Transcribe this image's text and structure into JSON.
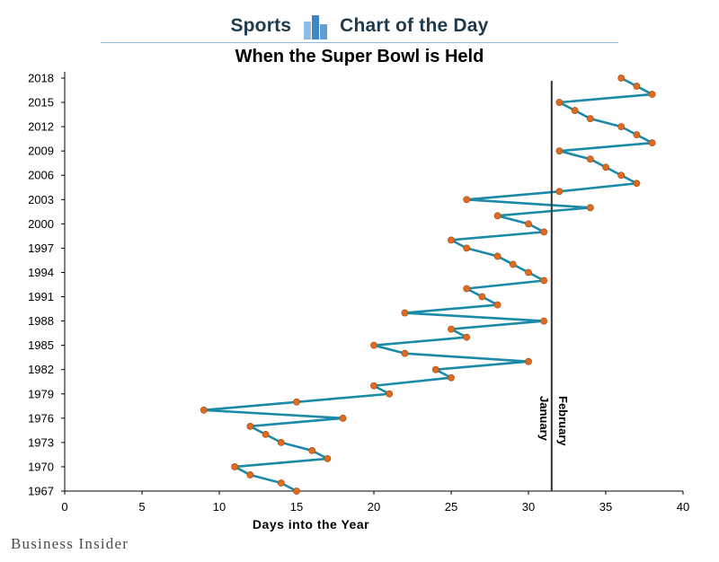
{
  "header": {
    "left_word": "Sports",
    "right_word": "Chart of the Day",
    "logo_icon": "bar-chart-icon",
    "accent_color": "#4a90c8"
  },
  "brand": "Business Insider",
  "chart_data": {
    "type": "line",
    "title": "When the Super Bowl is Held",
    "xlabel": "Days into the Year",
    "ylabel": "",
    "xlim": [
      0,
      40
    ],
    "ylim": [
      1967,
      2018
    ],
    "x_ticks": [
      0,
      5,
      10,
      15,
      20,
      25,
      30,
      35,
      40
    ],
    "y_ticks": [
      1967,
      1970,
      1973,
      1976,
      1979,
      1982,
      1985,
      1988,
      1991,
      1994,
      1997,
      2000,
      2003,
      2006,
      2009,
      2012,
      2015,
      2018
    ],
    "grid": false,
    "line_color": "#1b8aa8",
    "marker_color": "#e06a1f",
    "series": [
      {
        "points": [
          {
            "year": 1967,
            "day": 15
          },
          {
            "year": 1968,
            "day": 14
          },
          {
            "year": 1969,
            "day": 12
          },
          {
            "year": 1970,
            "day": 11
          },
          {
            "year": 1971,
            "day": 17
          },
          {
            "year": 1972,
            "day": 16
          },
          {
            "year": 1973,
            "day": 14
          },
          {
            "year": 1974,
            "day": 13
          },
          {
            "year": 1975,
            "day": 12
          },
          {
            "year": 1976,
            "day": 18
          },
          {
            "year": 1977,
            "day": 9
          },
          {
            "year": 1978,
            "day": 15
          },
          {
            "year": 1979,
            "day": 21
          },
          {
            "year": 1980,
            "day": 20
          },
          {
            "year": 1981,
            "day": 25
          },
          {
            "year": 1982,
            "day": 24
          },
          {
            "year": 1983,
            "day": 30
          },
          {
            "year": 1984,
            "day": 22
          },
          {
            "year": 1985,
            "day": 20
          },
          {
            "year": 1986,
            "day": 26
          },
          {
            "year": 1987,
            "day": 25
          },
          {
            "year": 1988,
            "day": 31
          },
          {
            "year": 1989,
            "day": 22
          },
          {
            "year": 1990,
            "day": 28
          },
          {
            "year": 1991,
            "day": 27
          },
          {
            "year": 1992,
            "day": 26
          },
          {
            "year": 1993,
            "day": 31
          },
          {
            "year": 1994,
            "day": 30
          },
          {
            "year": 1995,
            "day": 29
          },
          {
            "year": 1996,
            "day": 28
          },
          {
            "year": 1997,
            "day": 26
          },
          {
            "year": 1998,
            "day": 25
          },
          {
            "year": 1999,
            "day": 31
          },
          {
            "year": 2000,
            "day": 30
          },
          {
            "year": 2001,
            "day": 28
          },
          {
            "year": 2002,
            "day": 34
          },
          {
            "year": 2003,
            "day": 26
          },
          {
            "year": 2004,
            "day": 32
          },
          {
            "year": 2005,
            "day": 37
          },
          {
            "year": 2006,
            "day": 36
          },
          {
            "year": 2007,
            "day": 35
          },
          {
            "year": 2008,
            "day": 34
          },
          {
            "year": 2009,
            "day": 32
          },
          {
            "year": 2010,
            "day": 38
          },
          {
            "year": 2011,
            "day": 37
          },
          {
            "year": 2012,
            "day": 36
          },
          {
            "year": 2013,
            "day": 34
          },
          {
            "year": 2014,
            "day": 33
          },
          {
            "year": 2015,
            "day": 32
          },
          {
            "year": 2016,
            "day": 38
          },
          {
            "year": 2017,
            "day": 37
          },
          {
            "year": 2018,
            "day": 36
          }
        ]
      }
    ],
    "annotation": {
      "x": 31.5,
      "label_left": "January",
      "label_right": "February"
    }
  }
}
